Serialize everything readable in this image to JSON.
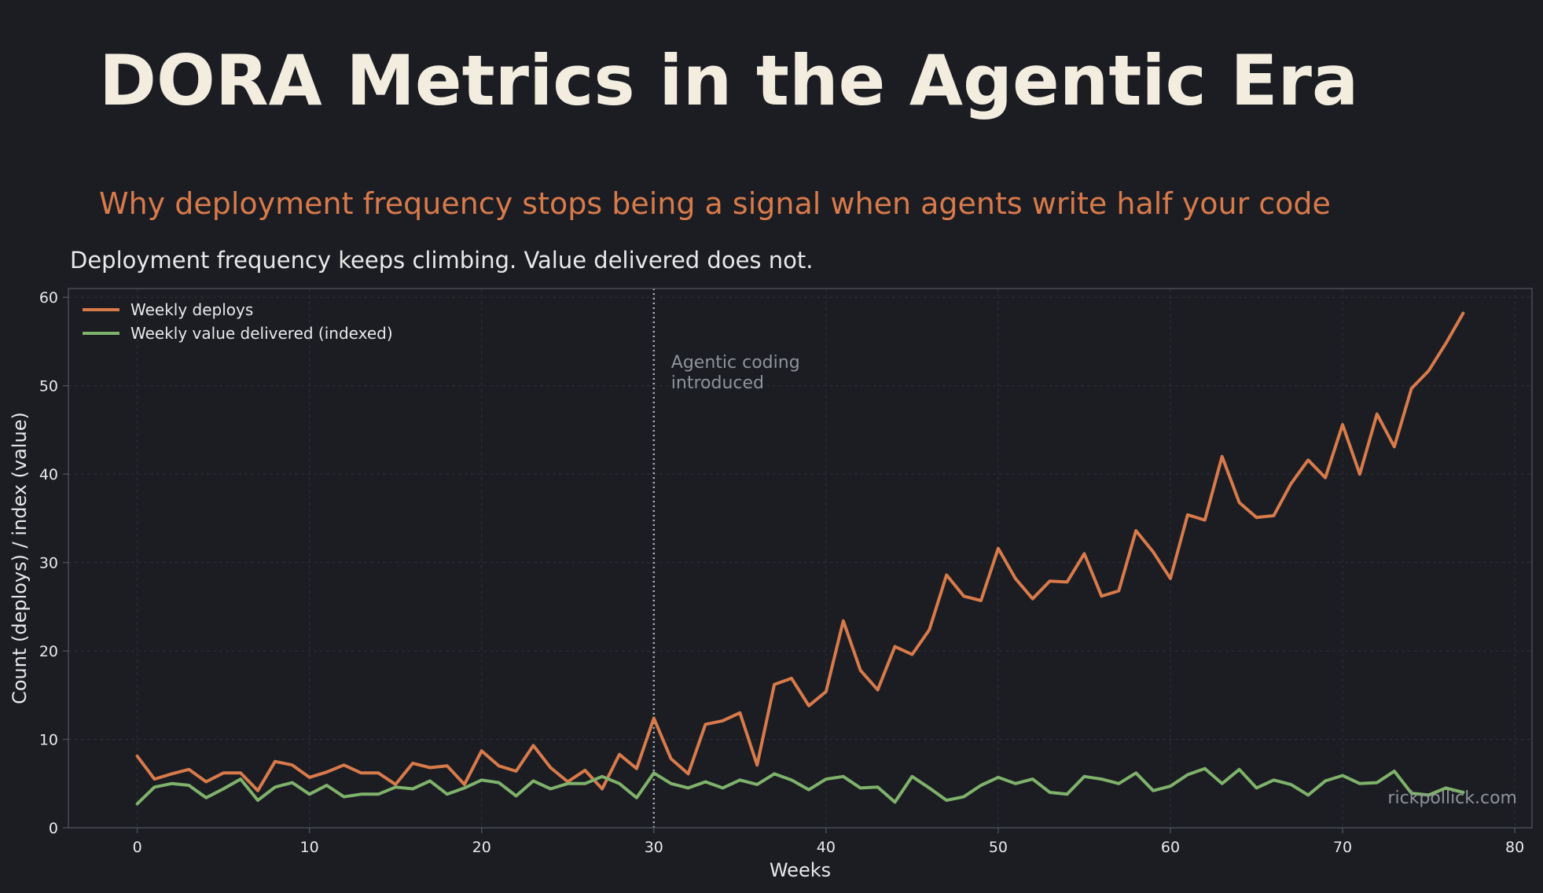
{
  "page": {
    "title": "DORA Metrics in the Agentic Era",
    "subtitle": "Why deployment frequency stops being a signal when agents write half your code",
    "watermark": "rickpollick.com"
  },
  "colors": {
    "background": "#1b1d23",
    "title": "#f3ede0",
    "subtitle": "#d97a4a",
    "text": "#e9e9e9",
    "muted": "#8e929b",
    "axis": "#4a4d55",
    "grid": "#2f323a",
    "deploys": "#d97a4a",
    "value": "#7fb26a",
    "marker": "#a7acb6"
  },
  "chart_data": {
    "type": "line",
    "title": "Deployment frequency keeps climbing. Value delivered does not.",
    "xlabel": "Weeks",
    "ylabel": "Count (deploys) / index (value)",
    "xlim": [
      -4,
      81
    ],
    "ylim": [
      0,
      61
    ],
    "xticks": [
      0,
      10,
      20,
      30,
      40,
      50,
      60,
      70,
      80
    ],
    "yticks": [
      0,
      10,
      20,
      30,
      40,
      50,
      60
    ],
    "grid": true,
    "legend_position": "upper-left",
    "x": [
      0,
      1,
      2,
      3,
      4,
      5,
      6,
      7,
      8,
      9,
      10,
      11,
      12,
      13,
      14,
      15,
      16,
      17,
      18,
      19,
      20,
      21,
      22,
      23,
      24,
      25,
      26,
      27,
      28,
      29,
      30,
      31,
      32,
      33,
      34,
      35,
      36,
      37,
      38,
      39,
      40,
      41,
      42,
      43,
      44,
      45,
      46,
      47,
      48,
      49,
      50,
      51,
      52,
      53,
      54,
      55,
      56,
      57,
      58,
      59,
      60,
      61,
      62,
      63,
      64,
      65,
      66,
      67,
      68,
      69,
      70,
      71,
      72,
      73,
      74,
      75,
      76,
      77
    ],
    "series": [
      {
        "name": "Weekly deploys",
        "color": "#d97a4a",
        "values": [
          8.1,
          5.5,
          6.1,
          6.6,
          5.2,
          6.2,
          6.2,
          4.2,
          7.5,
          7.1,
          5.7,
          6.3,
          7.1,
          6.2,
          6.2,
          4.9,
          7.3,
          6.8,
          7.0,
          4.9,
          8.7,
          7.0,
          6.4,
          9.3,
          6.8,
          5.2,
          6.5,
          4.4,
          8.3,
          6.7,
          12.4,
          7.8,
          6.1,
          11.7,
          12.1,
          13.0,
          7.1,
          16.2,
          16.9,
          13.8,
          15.4,
          23.4,
          17.8,
          15.6,
          20.5,
          19.6,
          22.4,
          28.6,
          26.2,
          25.7,
          31.6,
          28.2,
          25.9,
          27.9,
          27.8,
          31.0,
          26.2,
          26.8,
          33.6,
          31.2,
          28.2,
          35.4,
          34.8,
          42.0,
          36.8,
          35.1,
          35.3,
          38.9,
          41.6,
          39.6,
          45.6,
          40.0,
          46.8,
          43.1,
          49.7,
          51.7,
          54.8,
          58.2
        ]
      },
      {
        "name": "Weekly value delivered (indexed)",
        "color": "#7fb26a",
        "values": [
          2.7,
          4.6,
          5.0,
          4.8,
          3.4,
          4.4,
          5.5,
          3.1,
          4.6,
          5.1,
          3.8,
          4.8,
          3.5,
          3.8,
          3.8,
          4.6,
          4.4,
          5.3,
          3.8,
          4.5,
          5.4,
          5.1,
          3.6,
          5.3,
          4.4,
          5.0,
          5.0,
          5.8,
          5.0,
          3.4,
          6.2,
          5.0,
          4.5,
          5.2,
          4.5,
          5.4,
          4.9,
          6.1,
          5.4,
          4.3,
          5.5,
          5.8,
          4.5,
          4.6,
          2.9,
          5.8,
          4.5,
          3.1,
          3.5,
          4.8,
          5.7,
          5.0,
          5.5,
          4.0,
          3.8,
          5.8,
          5.5,
          5.0,
          6.2,
          4.2,
          4.7,
          6.0,
          6.7,
          5.0,
          6.6,
          4.5,
          5.4,
          4.9,
          3.7,
          5.3,
          5.9,
          5.0,
          5.1,
          6.4,
          3.9,
          3.7,
          4.5,
          4.0
        ]
      }
    ],
    "annotations": [
      {
        "x": 30,
        "style": "dotted-vertical-line",
        "text": [
          "Agentic coding",
          "introduced"
        ]
      }
    ]
  }
}
